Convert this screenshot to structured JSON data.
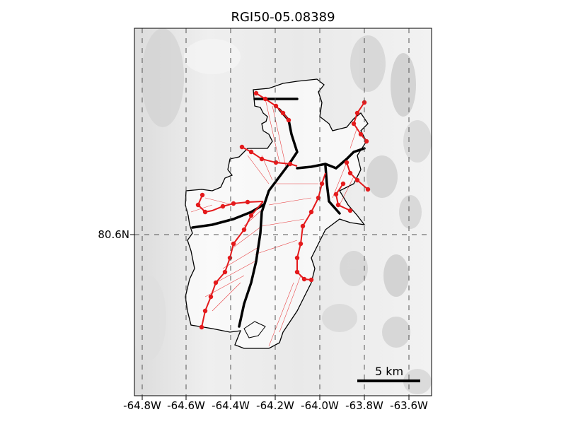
{
  "title": "RGI50-05.08389",
  "longitude_ticks": [
    "-64.8W",
    "-64.6W",
    "-64.4W",
    "-64.2W",
    "-64.0W",
    "-63.8W",
    "-63.6W"
  ],
  "latitude_ticks": [
    "80.6N"
  ],
  "scale_bar": {
    "label": "5 km"
  },
  "colors": {
    "glacier_outline": "#000000",
    "centerline": "#000000",
    "flowline_points": "#e41a1c",
    "catchment_lines": "#e41a1c",
    "graticule": "#555555",
    "terrain_light": "#e6e6e6",
    "terrain_shadow": "#c8c8c8"
  }
}
